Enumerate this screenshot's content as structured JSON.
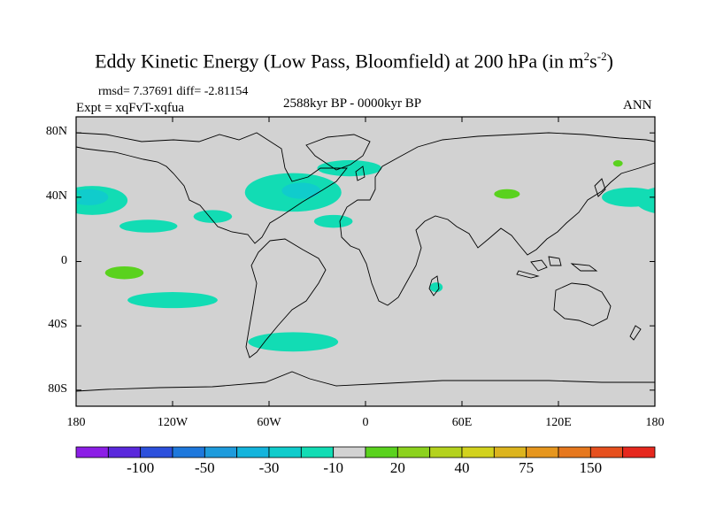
{
  "chart_data": {
    "type": "heatmap",
    "map_projection": "cylindrical equidistant",
    "title_main": "Eddy Kinetic Energy (Low Pass, Bloomfield) at 200 hPa (in m",
    "title_sup1": "2",
    "title_mid": "s",
    "title_sup2": "-2",
    "title_end": ")",
    "stats": "rmsd= 7.37691 diff= -2.81154",
    "experiment": "Expt = xqFvT-xqfua",
    "period": "2588kyr BP - 0000kyr BP",
    "season": "ANN",
    "lat_range": [
      -90,
      90
    ],
    "lon_range": [
      -180,
      180
    ],
    "y_ticks": [
      {
        "lat": 80,
        "label": "80N"
      },
      {
        "lat": 40,
        "label": "40N"
      },
      {
        "lat": 0,
        "label": "0"
      },
      {
        "lat": -40,
        "label": "40S"
      },
      {
        "lat": -80,
        "label": "80S"
      }
    ],
    "x_ticks": [
      {
        "lon": -180,
        "label": "180"
      },
      {
        "lon": -120,
        "label": "120W"
      },
      {
        "lon": -60,
        "label": "60W"
      },
      {
        "lon": 0,
        "label": "0"
      },
      {
        "lon": 60,
        "label": "60E"
      },
      {
        "lon": 120,
        "label": "120E"
      },
      {
        "lon": 180,
        "label": "180"
      }
    ],
    "colorbar": {
      "colors": [
        "#8c1ee6",
        "#5a28dc",
        "#2c50dc",
        "#1e78dc",
        "#1e9bdc",
        "#14b4dc",
        "#10cccc",
        "#12dcb4",
        "#d2d2d2",
        "#5ad21e",
        "#8cd21e",
        "#b4d21e",
        "#d2d21e",
        "#dcb41e",
        "#e6961e",
        "#e6781e",
        "#e6501e",
        "#e6281e"
      ],
      "labels": [
        {
          "boundary": 2,
          "text": "-100"
        },
        {
          "boundary": 4,
          "text": "-50"
        },
        {
          "boundary": 6,
          "text": "-30"
        },
        {
          "boundary": 8,
          "text": "-10"
        },
        {
          "boundary": 10,
          "text": "20"
        },
        {
          "boundary": 12,
          "text": "40"
        },
        {
          "boundary": 14,
          "text": "75"
        },
        {
          "boundary": 16,
          "text": "150"
        }
      ]
    },
    "anomaly_regions": [
      {
        "name": "North Pacific",
        "class": "-10 to -5",
        "color": "#12dcb4",
        "center": [
          -170,
          38
        ],
        "radius": [
          22,
          9
        ]
      },
      {
        "name": "North Pacific core",
        "class": "-20 to -10",
        "color": "#10cccc",
        "center": [
          -172,
          40
        ],
        "radius": [
          12,
          5
        ]
      },
      {
        "name": "Northwest Pacific",
        "class": "-10 to -5",
        "color": "#12dcb4",
        "center": [
          165,
          40
        ],
        "radius": [
          18,
          6
        ]
      },
      {
        "name": "Subtropical Pacific",
        "class": "-10 to -5",
        "color": "#12dcb4",
        "center": [
          -135,
          22
        ],
        "radius": [
          18,
          4
        ]
      },
      {
        "name": "Central America",
        "class": "-10 to -5",
        "color": "#12dcb4",
        "center": [
          -95,
          28
        ],
        "radius": [
          12,
          4
        ]
      },
      {
        "name": "North Atlantic",
        "class": "-10 to -5",
        "color": "#12dcb4",
        "center": [
          -45,
          43
        ],
        "radius": [
          30,
          12
        ]
      },
      {
        "name": "North Atlantic core",
        "class": "-20 to -10",
        "color": "#10cccc",
        "center": [
          -40,
          44
        ],
        "radius": [
          12,
          5
        ]
      },
      {
        "name": "Atlantic north branch",
        "class": "-10 to -5",
        "color": "#12dcb4",
        "center": [
          -10,
          58
        ],
        "radius": [
          20,
          5
        ]
      },
      {
        "name": "Subtropical Atlantic",
        "class": "-10 to -5",
        "color": "#12dcb4",
        "center": [
          -20,
          25
        ],
        "radius": [
          12,
          4
        ]
      },
      {
        "name": "South Pacific",
        "class": "-10 to -5",
        "color": "#12dcb4",
        "center": [
          -120,
          -24
        ],
        "radius": [
          28,
          5
        ]
      },
      {
        "name": "South Atlantic",
        "class": "-10 to -5",
        "color": "#12dcb4",
        "center": [
          -45,
          -50
        ],
        "radius": [
          28,
          6
        ]
      },
      {
        "name": "Madagascar",
        "class": "-10 to -5",
        "color": "#12dcb4",
        "center": [
          44,
          -16
        ],
        "radius": [
          4,
          3
        ]
      },
      {
        "name": "East Pacific",
        "class": "15 to 20",
        "color": "#5ad21e",
        "center": [
          -150,
          -7
        ],
        "radius": [
          12,
          4
        ]
      },
      {
        "name": "Central Asia",
        "class": "15 to 20",
        "color": "#5ad21e",
        "center": [
          88,
          42
        ],
        "radius": [
          8,
          3
        ]
      },
      {
        "name": "Kamchatka",
        "class": "15 to 20",
        "color": "#5ad21e",
        "center": [
          157,
          61
        ],
        "radius": [
          3,
          2
        ]
      }
    ]
  }
}
